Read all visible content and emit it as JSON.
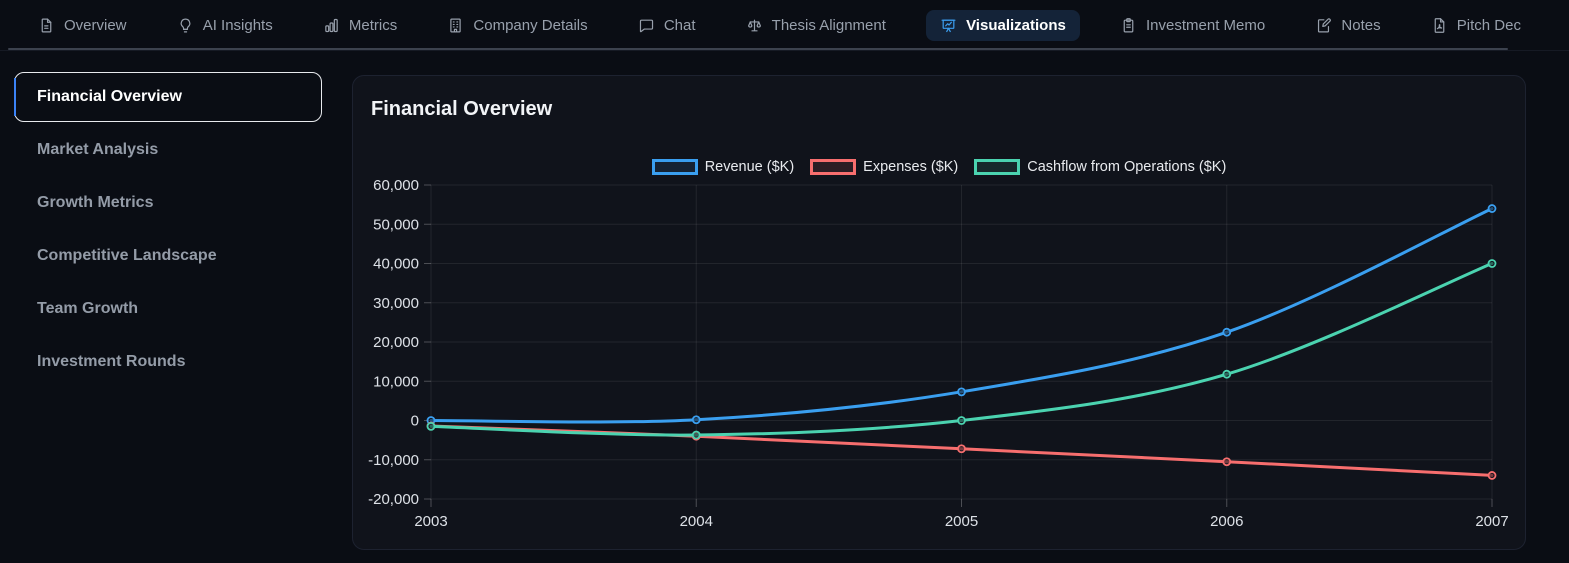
{
  "nav": {
    "tabs": [
      {
        "label": "Overview",
        "icon": "document-icon",
        "active": false
      },
      {
        "label": "AI Insights",
        "icon": "lightbulb-icon",
        "active": false
      },
      {
        "label": "Metrics",
        "icon": "bar-chart-icon",
        "active": false
      },
      {
        "label": "Company Details",
        "icon": "building-icon",
        "active": false
      },
      {
        "label": "Chat",
        "icon": "chat-bubble-icon",
        "active": false
      },
      {
        "label": "Thesis Alignment",
        "icon": "scales-icon",
        "active": false
      },
      {
        "label": "Visualizations",
        "icon": "presentation-chart-icon",
        "active": true
      },
      {
        "label": "Investment Memo",
        "icon": "clipboard-icon",
        "active": false
      },
      {
        "label": "Notes",
        "icon": "note-pencil-icon",
        "active": false
      },
      {
        "label": "Pitch Dec",
        "icon": "pdf-file-icon",
        "active": false
      }
    ]
  },
  "sidebar": {
    "items": [
      {
        "label": "Financial Overview",
        "selected": true
      },
      {
        "label": "Market Analysis",
        "selected": false
      },
      {
        "label": "Growth Metrics",
        "selected": false
      },
      {
        "label": "Competitive Landscape",
        "selected": false
      },
      {
        "label": "Team Growth",
        "selected": false
      },
      {
        "label": "Investment Rounds",
        "selected": false
      }
    ]
  },
  "panel": {
    "title": "Financial Overview"
  },
  "chart_data": {
    "type": "line",
    "title": "Financial Overview",
    "x": [
      2003,
      2004,
      2005,
      2006,
      2007
    ],
    "series": [
      {
        "name": "Revenue ($K)",
        "color": "#3a9ff0",
        "values": [
          0,
          200,
          7300,
          22500,
          54000
        ]
      },
      {
        "name": "Expenses ($K)",
        "color": "#f76e6e",
        "values": [
          -1400,
          -4000,
          -7200,
          -10500,
          -14000
        ]
      },
      {
        "name": "Cashflow from Operations ($K)",
        "color": "#4bd3b0",
        "values": [
          -1500,
          -3700,
          0,
          11800,
          40000
        ]
      }
    ],
    "ylim": [
      -20000,
      60000
    ],
    "ytick_step": 10000,
    "grid": true,
    "legend_position": "top",
    "colors": {
      "grid": "rgba(255,255,255,0.08)",
      "tick": "rgba(255,255,255,0.25)",
      "accent": "#3b82f6"
    }
  }
}
